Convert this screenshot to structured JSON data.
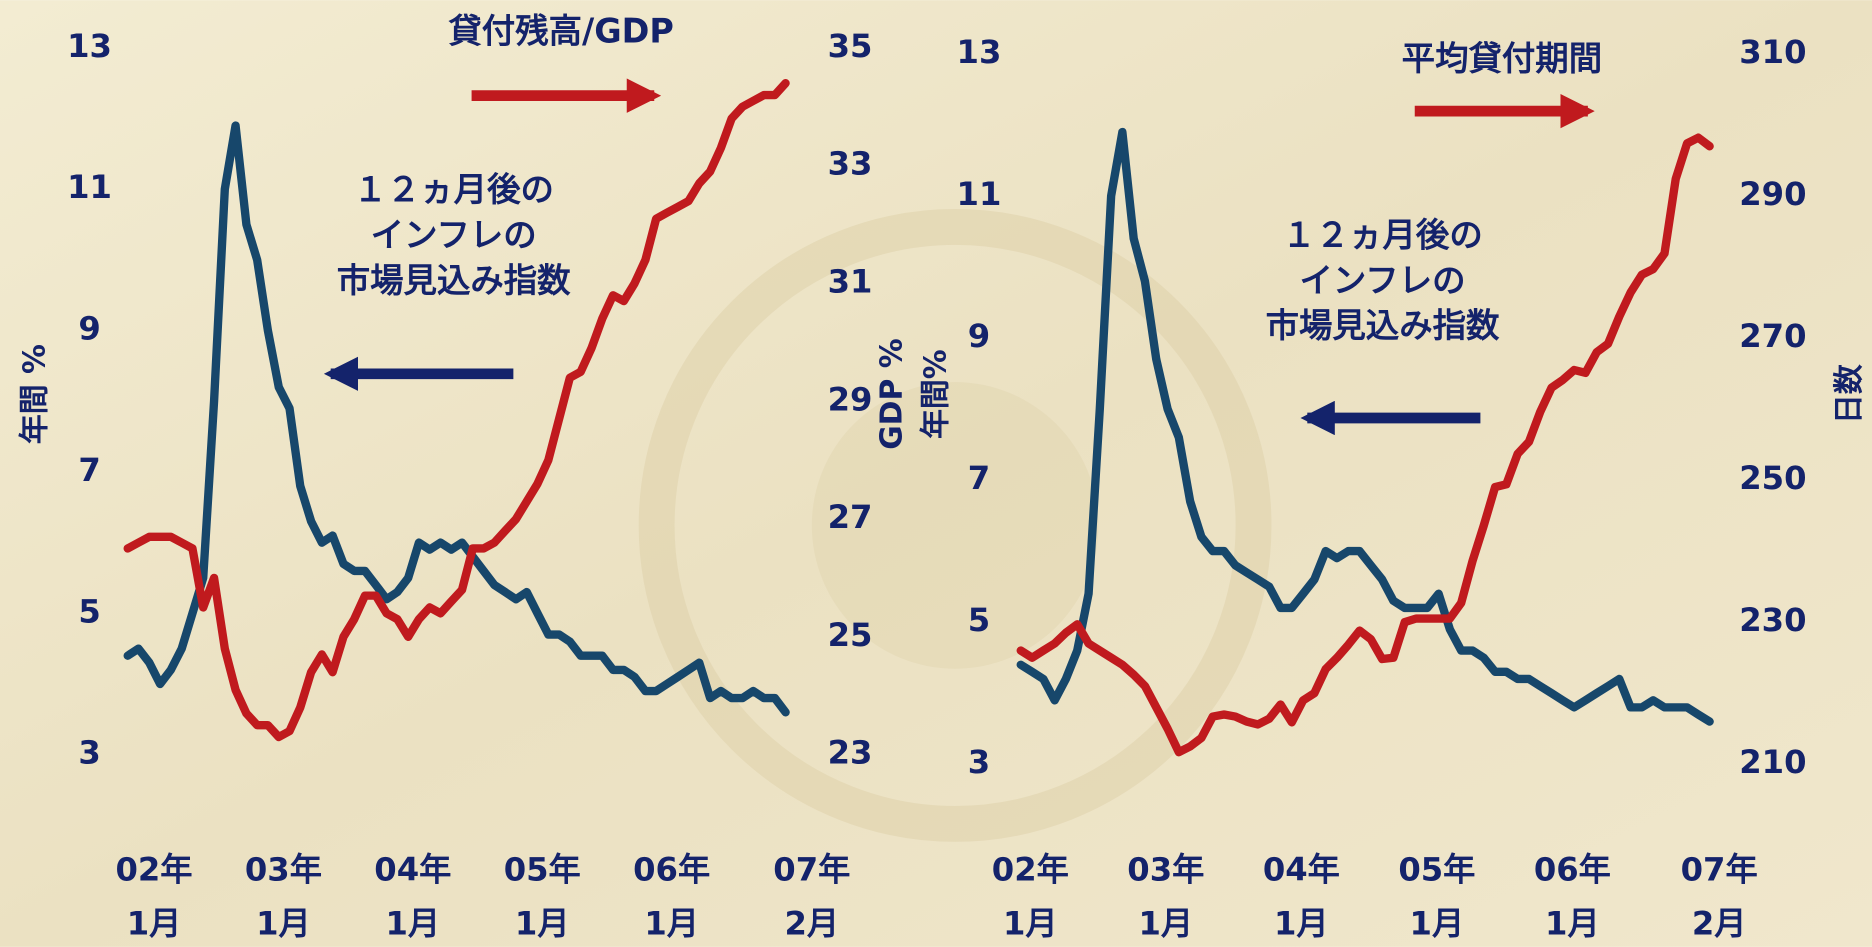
{
  "chart_data": [
    {
      "type": "line",
      "ylabel": "年間 %",
      "y2label": "GDP %",
      "ylim": [
        3,
        13
      ],
      "yticks": [
        3,
        5,
        7,
        9,
        11,
        13
      ],
      "y2lim": [
        23,
        35
      ],
      "y2ticks": [
        23,
        25,
        27,
        29,
        31,
        33,
        35
      ],
      "xlim": [
        "2002-01",
        "2007-02"
      ],
      "xticks": [
        {
          "value": "2002-01",
          "label": "02年\n1月"
        },
        {
          "value": "2003-01",
          "label": "03年\n1月"
        },
        {
          "value": "2004-01",
          "label": "04年\n1月"
        },
        {
          "value": "2005-01",
          "label": "05年\n1月"
        },
        {
          "value": "2006-01",
          "label": "06年\n1月"
        },
        {
          "value": "2007-02",
          "label": "07年\n2月"
        }
      ],
      "x": [
        "2002-01",
        "2002-02",
        "2002-03",
        "2002-04",
        "2002-05",
        "2002-06",
        "2002-07",
        "2002-08",
        "2002-09",
        "2002-10",
        "2002-11",
        "2002-12",
        "2003-01",
        "2003-02",
        "2003-03",
        "2003-04",
        "2003-05",
        "2003-06",
        "2003-07",
        "2003-08",
        "2003-09",
        "2003-10",
        "2003-11",
        "2003-12",
        "2004-01",
        "2004-02",
        "2004-03",
        "2004-04",
        "2004-05",
        "2004-06",
        "2004-07",
        "2004-08",
        "2004-09",
        "2004-10",
        "2004-11",
        "2004-12",
        "2005-01",
        "2005-02",
        "2005-03",
        "2005-04",
        "2005-05",
        "2005-06",
        "2005-07",
        "2005-08",
        "2005-09",
        "2005-10",
        "2005-11",
        "2005-12",
        "2006-01",
        "2006-02",
        "2006-03",
        "2006-04",
        "2006-05",
        "2006-06",
        "2006-07",
        "2006-08",
        "2006-09",
        "2006-10",
        "2006-11",
        "2006-12",
        "2007-01",
        "2007-02"
      ],
      "series": [
        {
          "name": "１２ヵ月後の\nインフレの\n市場見込み指数",
          "color": "#17476b",
          "axis": "y",
          "values": [
            4.4,
            4.5,
            4.3,
            4.0,
            4.2,
            4.5,
            5.0,
            5.5,
            8.0,
            11.0,
            11.9,
            10.5,
            10.0,
            9.0,
            8.2,
            7.9,
            6.8,
            6.3,
            6.0,
            6.1,
            5.7,
            5.6,
            5.6,
            5.4,
            5.2,
            5.3,
            5.5,
            6.0,
            5.9,
            6.0,
            5.9,
            6.0,
            5.8,
            5.6,
            5.4,
            5.3,
            5.2,
            5.3,
            5.0,
            4.7,
            4.7,
            4.6,
            4.4,
            4.4,
            4.4,
            4.2,
            4.2,
            4.1,
            3.9,
            3.9,
            4.0,
            4.1,
            4.2,
            4.3,
            3.8,
            3.9,
            3.8,
            3.8,
            3.9,
            3.8,
            3.8,
            3.6
          ]
        },
        {
          "name": "貸付残高/GDP",
          "color": "#c01a1e",
          "axis": "y2",
          "values": [
            26.5,
            26.6,
            26.7,
            26.7,
            26.7,
            26.6,
            26.5,
            25.5,
            26.0,
            24.8,
            24.1,
            23.7,
            23.5,
            23.5,
            23.3,
            23.4,
            23.8,
            24.4,
            24.7,
            24.4,
            25.0,
            25.3,
            25.7,
            25.7,
            25.4,
            25.3,
            25.0,
            25.3,
            25.5,
            25.4,
            25.6,
            25.8,
            26.5,
            26.5,
            26.6,
            26.8,
            27.0,
            27.3,
            27.6,
            28.0,
            28.7,
            29.4,
            29.5,
            29.9,
            30.4,
            30.8,
            30.7,
            31.0,
            31.4,
            32.1,
            32.2,
            32.3,
            32.4,
            32.7,
            32.9,
            33.3,
            33.8,
            34.0,
            34.1,
            34.2,
            34.2,
            34.4
          ]
        }
      ]
    },
    {
      "type": "line",
      "ylabel": "年間%",
      "y2label": "日数",
      "ylim": [
        3,
        13
      ],
      "yticks": [
        3,
        5,
        7,
        9,
        11,
        13
      ],
      "y2lim": [
        210,
        310
      ],
      "y2ticks": [
        210,
        230,
        250,
        270,
        290,
        310
      ],
      "xlim": [
        "2002-01",
        "2007-02"
      ],
      "xticks": [
        {
          "value": "2002-01",
          "label": "02年\n1月"
        },
        {
          "value": "2003-01",
          "label": "03年\n1月"
        },
        {
          "value": "2004-01",
          "label": "04年\n1月"
        },
        {
          "value": "2005-01",
          "label": "05年\n1月"
        },
        {
          "value": "2006-01",
          "label": "06年\n1月"
        },
        {
          "value": "2007-02",
          "label": "07年\n2月"
        }
      ],
      "x": [
        "2002-01",
        "2002-02",
        "2002-03",
        "2002-04",
        "2002-05",
        "2002-06",
        "2002-07",
        "2002-08",
        "2002-09",
        "2002-10",
        "2002-11",
        "2002-12",
        "2003-01",
        "2003-02",
        "2003-03",
        "2003-04",
        "2003-05",
        "2003-06",
        "2003-07",
        "2003-08",
        "2003-09",
        "2003-10",
        "2003-11",
        "2003-12",
        "2004-01",
        "2004-02",
        "2004-03",
        "2004-04",
        "2004-05",
        "2004-06",
        "2004-07",
        "2004-08",
        "2004-09",
        "2004-10",
        "2004-11",
        "2004-12",
        "2005-01",
        "2005-02",
        "2005-03",
        "2005-04",
        "2005-05",
        "2005-06",
        "2005-07",
        "2005-08",
        "2005-09",
        "2005-10",
        "2005-11",
        "2005-12",
        "2006-01",
        "2006-02",
        "2006-03",
        "2006-04",
        "2006-05",
        "2006-06",
        "2006-07",
        "2006-08",
        "2006-09",
        "2006-10",
        "2006-11",
        "2006-12",
        "2007-01",
        "2007-02"
      ],
      "series": [
        {
          "name": "１２ヵ月後の\nインフレの\n市場見込み指数",
          "color": "#17476b",
          "axis": "y",
          "values": [
            4.4,
            4.3,
            4.2,
            3.9,
            4.2,
            4.6,
            5.4,
            8.0,
            11.0,
            11.9,
            10.4,
            9.8,
            8.7,
            8.0,
            7.6,
            6.7,
            6.2,
            6.0,
            6.0,
            5.8,
            5.7,
            5.6,
            5.5,
            5.2,
            5.2,
            5.4,
            5.6,
            6.0,
            5.9,
            6.0,
            6.0,
            5.8,
            5.6,
            5.3,
            5.2,
            5.2,
            5.2,
            5.4,
            4.9,
            4.6,
            4.6,
            4.5,
            4.3,
            4.3,
            4.2,
            4.2,
            4.1,
            4.0,
            3.9,
            3.8,
            3.9,
            4.0,
            4.1,
            4.2,
            3.8,
            3.8,
            3.9,
            3.8,
            3.8,
            3.8,
            3.7,
            3.6
          ]
        },
        {
          "name": "平均貸付期間",
          "color": "#c01a1e",
          "axis": "y2",
          "values": [
            226,
            225,
            226,
            227,
            228.5,
            229.7,
            227,
            226,
            225,
            224,
            222.6,
            221,
            218,
            215,
            211.7,
            212.5,
            213.7,
            216.7,
            217,
            216.7,
            216,
            215.6,
            216.4,
            218.4,
            215.9,
            219,
            220,
            223.4,
            225,
            226.8,
            228.8,
            227.6,
            224.8,
            225,
            230,
            230.5,
            230.5,
            230.5,
            230.5,
            232.7,
            238.6,
            243.6,
            249,
            249.4,
            253.7,
            255.4,
            259.6,
            263,
            264.1,
            265.5,
            265.1,
            268,
            269.2,
            273,
            276.4,
            278.9,
            279.7,
            281.9,
            292.4,
            297.4,
            298.2,
            297
          ]
        }
      ]
    }
  ]
}
